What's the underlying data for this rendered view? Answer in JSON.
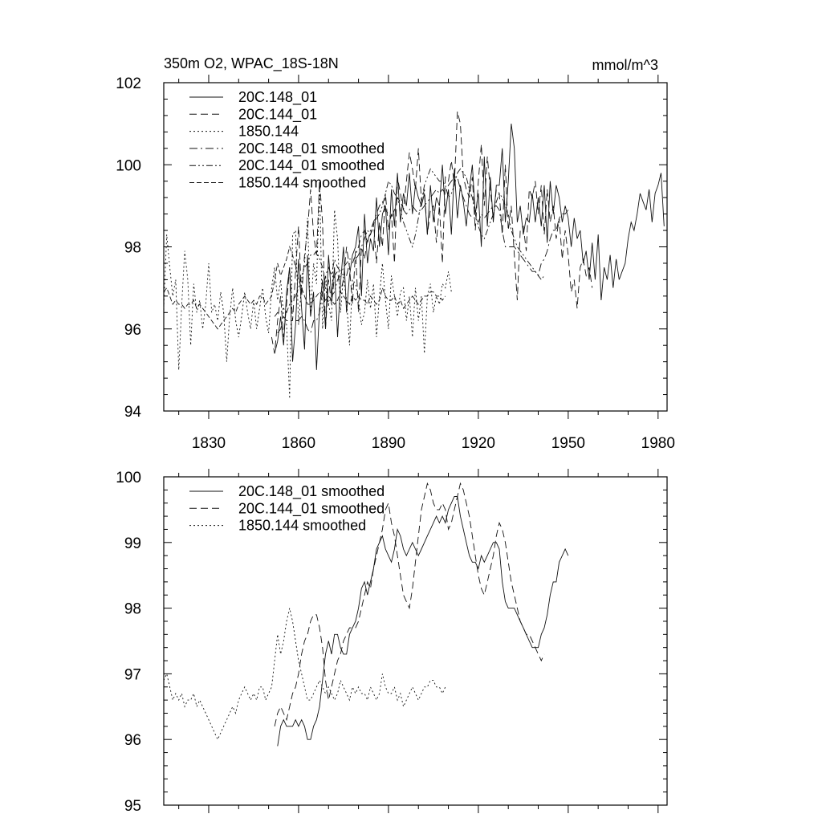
{
  "chart_data": [
    {
      "type": "line",
      "title": "350m O2, WPAC_18S-18N",
      "units": "mmol/m^3",
      "xlim": [
        1815,
        1983
      ],
      "ylim": [
        94,
        102
      ],
      "x_ticks": [
        1830,
        1860,
        1890,
        1920,
        1950,
        1980
      ],
      "y_ticks": [
        94,
        96,
        98,
        100,
        102
      ],
      "legend_position": "top-left",
      "series": [
        {
          "name": "20C.148_01",
          "x_start": 1852,
          "values": [
            95.4,
            95.7,
            96.3,
            95.6,
            96.9,
            97.5,
            95.2,
            96.1,
            97.7,
            96.5,
            95.5,
            97.8,
            96.3,
            96.9,
            95.0,
            96.5,
            97.2,
            96.0,
            97.8,
            96.8,
            97.5,
            95.8,
            97.1,
            98.0,
            96.4,
            97.3,
            97.8,
            98.0,
            98.5,
            96.8,
            98.8,
            97.6,
            98.2,
            97.9,
            99.2,
            98.0,
            98.8,
            99.0,
            97.8,
            99.4,
            98.5,
            99.8,
            98.6,
            99.3,
            99.0,
            99.8,
            98.8,
            99.5,
            99.2,
            99.0,
            99.3,
            98.3,
            99.5,
            98.6,
            99.2,
            99.0,
            100.0,
            98.8,
            99.4,
            98.3,
            99.9,
            98.7,
            99.5,
            99.1,
            98.5,
            99.4,
            100.0,
            98.8,
            99.3,
            98.0,
            100.2,
            98.5,
            99.7,
            98.6,
            99.5,
            99.5,
            100.4,
            98.6,
            99.6,
            101.0,
            100.4,
            98.6,
            99.0,
            98.3,
            98.7,
            98.6,
            99.3,
            98.6,
            99.2,
            98.5,
            99.5,
            98.1,
            99.6,
            98.8,
            99.5,
            99.2,
            98.6,
            99.0,
            98.7,
            98.0,
            98.7,
            98.2,
            98.4,
            97.6,
            97.9,
            97.2,
            98.1,
            97.2,
            98.3,
            96.7,
            97.5,
            97.2,
            97.8,
            97.0,
            97.7,
            97.2,
            97.4,
            97.6,
            98.2,
            98.6,
            98.4,
            98.8,
            99.3,
            99.1,
            98.9,
            99.4,
            98.6,
            99.3,
            99.5,
            99.8,
            98.5
          ]
        },
        {
          "name": "20C.144_01",
          "x_start": 1851,
          "values": [
            95.8,
            95.4,
            96.2,
            96.8,
            95.8,
            96.6,
            97.5,
            96.2,
            97.4,
            98.5,
            96.8,
            97.8,
            98.4,
            99.4,
            98.3,
            97.8,
            99.6,
            98.6,
            96.0,
            97.2,
            96.6,
            97.3,
            97.4,
            96.9,
            97.2,
            98.0,
            97.5,
            96.6,
            97.9,
            96.4,
            98.0,
            97.7,
            98.2,
            98.3,
            98.6,
            97.6,
            98.6,
            98.0,
            99.3,
            98.4,
            98.8,
            97.6,
            99.7,
            99.3,
            98.9,
            99.6,
            100.3,
            99.9,
            99.4,
            100.4,
            99.1,
            99.4,
            98.3,
            98.9,
            99.0,
            98.1,
            99.0,
            97.6,
            99.7,
            99.6,
            100.1,
            99.5,
            101.3,
            101.0,
            99.7,
            99.4,
            99.2,
            99.7,
            98.4,
            99.6,
            100.5,
            99.0,
            100.2,
            99.4,
            98.7,
            99.4,
            99.3,
            98.3,
            100.0,
            98.4,
            99.0,
            97.8,
            96.7,
            98.4,
            98.5,
            97.9,
            99.4,
            99.2,
            99.6,
            98.8,
            99.5,
            98.3,
            99.4,
            98.6,
            99.0,
            98.2,
            98.7,
            97.7,
            98.4,
            97.8,
            96.9,
            97.2,
            96.5,
            97.5,
            97.7,
            97.3,
            97.5,
            97.0
          ]
        },
        {
          "name": "1850.144",
          "x_start": 1815,
          "values": [
            96.5,
            98.3,
            97.5,
            96.8,
            97.2,
            95.0,
            96.6,
            97.9,
            97.2,
            95.6,
            97.1,
            96.4,
            96.7,
            96.0,
            96.6,
            97.6,
            96.4,
            96.6,
            96.2,
            96.9,
            96.4,
            95.2,
            96.3,
            97.0,
            96.2,
            95.8,
            96.3,
            96.9,
            96.4,
            96.0,
            96.7,
            96.0,
            96.5,
            97.0,
            96.3,
            95.9,
            97.0,
            97.5,
            96.7,
            97.2,
            96.3,
            96.1,
            94.3,
            98.3,
            98.4,
            96.1,
            97.1,
            97.6,
            98.7,
            96.3,
            97.6,
            97.1,
            99.6,
            96.0,
            97.3,
            96.6,
            96.2,
            98.9,
            98.2,
            96.4,
            97.3,
            96.7,
            95.6,
            97.2,
            97.1,
            96.7,
            96.1,
            96.4,
            97.2,
            96.5,
            97.1,
            95.8,
            96.8,
            97.6,
            96.7,
            96.0,
            97.3,
            96.8,
            96.3,
            96.9,
            97.0,
            96.2,
            96.8,
            95.8,
            97.0,
            96.2,
            96.8,
            95.4,
            96.8,
            97.1,
            96.4,
            96.8,
            96.6,
            97.1,
            97.0,
            97.4,
            96.9
          ]
        },
        {
          "name": "20C.148_01 smoothed",
          "x_start": 1853,
          "values": [
            95.9,
            96.0,
            96.3,
            96.2,
            96.2,
            96.2,
            96.2,
            96.2,
            96.3,
            96.2,
            96.0,
            95.9,
            96.2,
            96.2,
            96.4,
            96.9,
            97.3,
            97.5,
            97.3,
            97.7,
            97.5,
            97.4,
            97.3,
            97.3,
            97.6,
            97.6,
            97.8,
            98.0,
            98.3,
            98.4,
            98.1,
            98.4,
            98.6,
            98.8,
            99.0,
            99.1,
            98.9,
            98.8,
            98.7,
            98.9,
            99.2,
            99.1,
            98.9,
            98.8,
            98.9,
            99.0,
            98.9,
            98.8,
            98.9,
            99.0,
            99.1,
            99.2,
            99.3,
            99.4,
            99.3,
            99.4,
            99.3,
            99.5,
            99.6,
            99.7,
            99.7,
            99.4,
            99.2,
            99.0,
            98.8,
            98.7,
            98.7,
            98.6,
            98.8,
            98.7,
            98.8,
            98.9,
            99.0,
            99.0,
            98.9,
            98.4,
            98.0,
            98.0,
            98.0,
            98.0,
            97.9,
            97.8,
            97.7,
            97.6,
            97.5,
            97.4,
            97.4,
            97.3,
            97.6,
            97.7,
            97.9,
            98.2,
            98.4,
            98.4,
            98.7,
            98.8,
            98.8,
            98.9
          ]
        },
        {
          "name": "20C.144_01 smoothed",
          "x_start": 1852,
          "values": [
            96.3,
            96.4,
            96.4,
            96.5,
            96.4,
            96.6,
            96.7,
            96.8,
            97.0,
            97.3,
            97.5,
            97.6,
            97.8,
            97.8,
            97.9,
            97.7,
            97.5,
            97.0,
            96.6,
            96.8,
            96.9,
            97.2,
            97.3,
            97.5,
            97.6,
            97.7,
            97.7,
            97.7,
            97.8,
            98.0,
            98.2,
            98.4,
            98.3,
            98.5,
            98.7,
            98.8,
            99.0,
            99.3,
            99.6,
            99.5,
            99.3,
            99.2,
            98.9,
            98.6,
            98.4,
            98.2,
            98.0,
            98.3,
            98.7,
            99.1,
            99.5,
            99.7,
            99.9,
            99.8,
            99.7,
            99.6,
            99.6,
            99.5,
            99.2,
            99.3,
            99.5,
            99.8,
            99.9,
            99.8,
            99.7,
            99.4,
            99.2,
            98.8,
            98.5,
            98.3,
            98.2,
            98.4,
            98.6,
            98.8,
            99.1,
            99.3,
            99.2,
            99.0,
            98.8,
            98.4,
            98.2,
            98.0,
            97.9,
            97.8,
            97.7,
            97.6,
            97.5,
            97.4,
            97.3,
            97.2,
            97.3
          ]
        },
        {
          "name": "1850.144 smoothed",
          "x_start": 1815,
          "values": [
            96.9,
            97.0,
            96.8,
            96.6,
            96.7,
            96.6,
            96.6,
            96.5,
            96.6,
            96.6,
            96.7,
            96.5,
            96.6,
            96.5,
            96.4,
            96.3,
            96.2,
            96.1,
            96.0,
            96.1,
            96.2,
            96.3,
            96.4,
            96.5,
            96.4,
            96.6,
            96.7,
            96.8,
            96.7,
            96.6,
            96.7,
            96.6,
            96.8,
            96.8,
            96.6,
            96.7,
            96.8,
            97.2,
            97.6,
            97.3,
            97.5,
            97.7,
            98.0,
            97.8,
            97.5,
            97.2,
            97.0,
            96.8,
            96.6,
            96.6,
            96.7,
            96.8,
            96.9,
            96.8,
            96.7,
            96.8,
            96.7,
            96.6,
            96.7,
            96.9,
            96.8,
            96.7,
            96.6,
            96.8,
            96.7,
            96.8,
            96.7,
            96.7,
            96.6,
            96.8,
            96.7,
            96.6,
            96.7,
            97.0,
            96.8,
            96.7,
            96.7,
            96.8,
            96.6,
            96.7,
            96.5,
            96.6,
            96.7,
            96.8,
            96.7,
            96.6,
            96.7,
            96.8,
            96.8,
            96.9,
            96.9,
            96.8,
            96.8,
            96.7,
            96.8
          ]
        }
      ]
    },
    {
      "type": "line",
      "title": "",
      "units": "",
      "xlim": [
        1815,
        1983
      ],
      "ylim": [
        95,
        100
      ],
      "x_ticks": [
        1830,
        1860,
        1890,
        1920,
        1950,
        1980
      ],
      "y_ticks": [
        95,
        96,
        97,
        98,
        99,
        100
      ],
      "legend_position": "top-left",
      "series": [
        {
          "name": "20C.148_01 smoothed",
          "x_start": 1853,
          "values": [
            95.9,
            96.2,
            96.3,
            96.2,
            96.2,
            96.2,
            96.3,
            96.2,
            96.3,
            96.2,
            96.0,
            96.0,
            96.2,
            96.3,
            96.5,
            96.9,
            97.3,
            97.5,
            97.3,
            97.6,
            97.6,
            97.4,
            97.3,
            97.3,
            97.6,
            97.7,
            97.8,
            98.0,
            98.3,
            98.4,
            98.2,
            98.4,
            98.6,
            98.9,
            99.0,
            99.1,
            98.9,
            98.8,
            98.7,
            98.9,
            99.2,
            99.1,
            98.9,
            98.8,
            98.9,
            99.0,
            98.9,
            98.8,
            98.9,
            99.0,
            99.1,
            99.2,
            99.3,
            99.4,
            99.3,
            99.4,
            99.3,
            99.5,
            99.6,
            99.7,
            99.7,
            99.4,
            99.2,
            99.0,
            98.8,
            98.7,
            98.7,
            98.6,
            98.8,
            98.7,
            98.8,
            98.9,
            99.0,
            99.0,
            98.9,
            98.4,
            98.1,
            98.0,
            98.0,
            98.0,
            97.9,
            97.8,
            97.7,
            97.6,
            97.5,
            97.4,
            97.4,
            97.4,
            97.6,
            97.7,
            97.9,
            98.2,
            98.4,
            98.4,
            98.7,
            98.8,
            98.9,
            98.8
          ]
        },
        {
          "name": "20C.144_01 smoothed",
          "x_start": 1852,
          "values": [
            96.2,
            96.4,
            96.5,
            96.4,
            96.3,
            96.5,
            96.7,
            96.8,
            97.0,
            97.3,
            97.5,
            97.6,
            97.8,
            97.9,
            97.9,
            97.7,
            97.4,
            96.9,
            96.6,
            96.8,
            97.0,
            97.2,
            97.3,
            97.5,
            97.6,
            97.7,
            97.7,
            97.7,
            97.8,
            98.0,
            98.2,
            98.4,
            98.3,
            98.6,
            98.8,
            99.0,
            99.2,
            99.5,
            99.6,
            99.3,
            99.1,
            98.8,
            98.5,
            98.2,
            98.1,
            98.0,
            98.3,
            98.7,
            99.1,
            99.5,
            99.7,
            99.9,
            99.8,
            99.6,
            99.5,
            99.5,
            99.6,
            99.5,
            99.2,
            99.3,
            99.5,
            99.7,
            99.9,
            99.8,
            99.6,
            99.4,
            99.1,
            98.8,
            98.5,
            98.3,
            98.2,
            98.4,
            98.6,
            98.8,
            99.1,
            99.3,
            99.2,
            99.0,
            98.7,
            98.4,
            98.2,
            98.0,
            97.8,
            97.7,
            97.6,
            97.6,
            97.5,
            97.4,
            97.3,
            97.2,
            97.3
          ]
        },
        {
          "name": "1850.144 smoothed",
          "x_start": 1815,
          "values": [
            96.9,
            97.0,
            96.8,
            96.6,
            96.7,
            96.6,
            96.7,
            96.5,
            96.6,
            96.6,
            96.7,
            96.5,
            96.6,
            96.5,
            96.4,
            96.3,
            96.2,
            96.1,
            96.0,
            96.1,
            96.2,
            96.3,
            96.4,
            96.5,
            96.4,
            96.6,
            96.7,
            96.8,
            96.7,
            96.6,
            96.7,
            96.6,
            96.8,
            96.8,
            96.6,
            96.7,
            96.8,
            97.2,
            97.6,
            97.3,
            97.5,
            97.8,
            98.0,
            97.8,
            97.5,
            97.2,
            97.0,
            96.8,
            96.6,
            96.6,
            96.7,
            96.8,
            96.9,
            96.8,
            96.7,
            96.8,
            96.7,
            96.6,
            96.7,
            96.9,
            96.8,
            96.7,
            96.6,
            96.8,
            96.7,
            96.8,
            96.7,
            96.7,
            96.6,
            96.8,
            96.7,
            96.6,
            96.7,
            97.0,
            96.8,
            96.7,
            96.7,
            96.8,
            96.6,
            96.7,
            96.5,
            96.6,
            96.7,
            96.8,
            96.7,
            96.6,
            96.7,
            96.8,
            96.8,
            96.9,
            96.9,
            96.8,
            96.8,
            96.7,
            96.8
          ]
        }
      ]
    }
  ]
}
